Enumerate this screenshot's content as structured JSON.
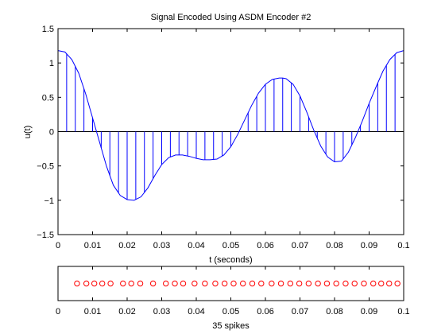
{
  "chart_data": [
    {
      "type": "line",
      "title": "Signal Encoded Using ASDM Encoder #2",
      "xlabel": "t (seconds)",
      "ylabel": "u(t)",
      "xlim": [
        0,
        0.1
      ],
      "ylim": [
        -1.5,
        1.5
      ],
      "xticks": [
        0,
        0.01,
        0.02,
        0.03,
        0.04,
        0.05,
        0.06,
        0.07,
        0.08,
        0.09,
        0.1
      ],
      "xtick_labels": [
        "0",
        "0.01",
        "0.02",
        "0.03",
        "0.04",
        "0.05",
        "0.06",
        "0.07",
        "0.08",
        "0.09",
        "0.1"
      ],
      "yticks": [
        -1.5,
        -1,
        -0.5,
        0,
        0.5,
        1,
        1.5
      ],
      "ytick_labels": [
        "−1.5",
        "−1",
        "−0.5",
        "0",
        "0.5",
        "1",
        "1.5"
      ],
      "grid": false,
      "line_color": "#0000ff",
      "series": [
        {
          "x": [
            0,
            0.002,
            0.004,
            0.006,
            0.008,
            0.01,
            0.012,
            0.014,
            0.016,
            0.018,
            0.02,
            0.022,
            0.024,
            0.026,
            0.028,
            0.03,
            0.032,
            0.034,
            0.036,
            0.038,
            0.04,
            0.042,
            0.044,
            0.046,
            0.048,
            0.05,
            0.052,
            0.054,
            0.056,
            0.058,
            0.06,
            0.062,
            0.064,
            0.065,
            0.066,
            0.068,
            0.07,
            0.072,
            0.074,
            0.076,
            0.078,
            0.08,
            0.082,
            0.084,
            0.086,
            0.088,
            0.09,
            0.092,
            0.094,
            0.096,
            0.098,
            0.1
          ],
          "y": [
            1.18,
            1.16,
            1.05,
            0.85,
            0.55,
            0.2,
            -0.15,
            -0.5,
            -0.78,
            -0.93,
            -0.99,
            -1.0,
            -0.95,
            -0.82,
            -0.64,
            -0.48,
            -0.38,
            -0.34,
            -0.34,
            -0.36,
            -0.39,
            -0.41,
            -0.41,
            -0.4,
            -0.34,
            -0.22,
            -0.04,
            0.17,
            0.38,
            0.56,
            0.69,
            0.76,
            0.78,
            0.78,
            0.77,
            0.69,
            0.52,
            0.28,
            0.02,
            -0.21,
            -0.37,
            -0.44,
            -0.43,
            -0.3,
            -0.09,
            0.15,
            0.41,
            0.65,
            0.88,
            1.05,
            1.15,
            1.18
          ]
        }
      ],
      "stem_x": [
        0.0025,
        0.005,
        0.0075,
        0.01,
        0.0125,
        0.015,
        0.0175,
        0.02,
        0.0225,
        0.025,
        0.0275,
        0.03,
        0.0325,
        0.035,
        0.0375,
        0.04,
        0.0425,
        0.045,
        0.0475,
        0.05,
        0.0525,
        0.055,
        0.0575,
        0.06,
        0.0625,
        0.065,
        0.0675,
        0.07,
        0.0725,
        0.075,
        0.0775,
        0.08,
        0.0825,
        0.085,
        0.0875,
        0.09,
        0.0925,
        0.095,
        0.0975
      ]
    },
    {
      "type": "scatter",
      "xlabel": "35 spikes",
      "xlim": [
        0,
        0.1
      ],
      "xticks": [
        0,
        0.01,
        0.02,
        0.03,
        0.04,
        0.05,
        0.06,
        0.07,
        0.08,
        0.09,
        0.1
      ],
      "xtick_labels": [
        "0",
        "0.01",
        "0.02",
        "0.03",
        "0.04",
        "0.05",
        "0.06",
        "0.07",
        "0.08",
        "0.09",
        "0.1"
      ],
      "marker": "circle-open",
      "marker_color": "#ff0000",
      "x": [
        0.0055,
        0.0082,
        0.0105,
        0.0128,
        0.0152,
        0.0188,
        0.0212,
        0.0238,
        0.0275,
        0.0312,
        0.0338,
        0.0362,
        0.0395,
        0.0425,
        0.0455,
        0.0482,
        0.0508,
        0.0535,
        0.0562,
        0.0588,
        0.0618,
        0.0645,
        0.0672,
        0.0698,
        0.0725,
        0.0752,
        0.0778,
        0.0805,
        0.0832,
        0.0858,
        0.0885,
        0.0912,
        0.0935,
        0.0958,
        0.0982
      ]
    }
  ]
}
